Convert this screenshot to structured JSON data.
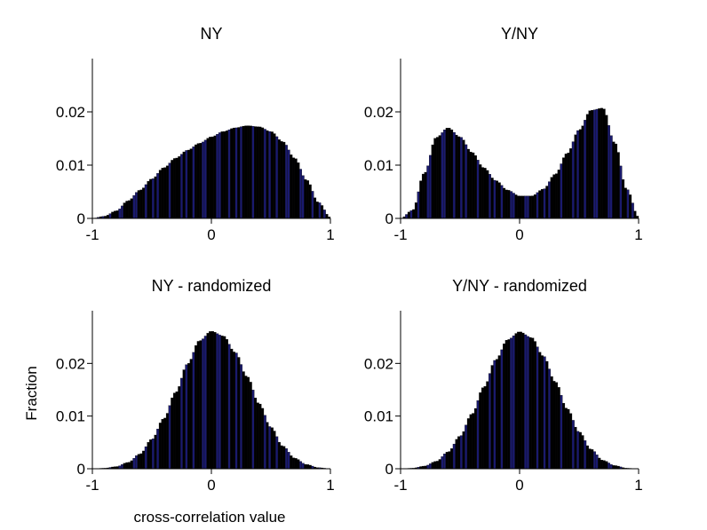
{
  "figure": {
    "ylabel": "Fraction",
    "xlabel": "cross-correlation value"
  },
  "chart_data": [
    {
      "type": "bar",
      "title": "NY",
      "xlim": [
        -1,
        1
      ],
      "ylim": [
        0,
        0.03
      ],
      "xticks": [
        "-1",
        "0",
        "1"
      ],
      "yticks": [
        "0",
        "0.01",
        "0.02"
      ],
      "x": [
        -1.0,
        -0.9,
        -0.8,
        -0.7,
        -0.6,
        -0.5,
        -0.4,
        -0.3,
        -0.2,
        -0.1,
        0.0,
        0.1,
        0.2,
        0.3,
        0.4,
        0.5,
        0.6,
        0.7,
        0.8,
        0.9,
        1.0
      ],
      "values": [
        0.0,
        0.0004,
        0.0014,
        0.0033,
        0.0053,
        0.0074,
        0.0095,
        0.0113,
        0.0128,
        0.0141,
        0.0153,
        0.0163,
        0.017,
        0.0174,
        0.0172,
        0.0163,
        0.0144,
        0.0113,
        0.0072,
        0.003,
        0.0002
      ]
    },
    {
      "type": "bar",
      "title": "Y/NY",
      "xlim": [
        -1,
        1
      ],
      "ylim": [
        0,
        0.03
      ],
      "xticks": [
        "-1",
        "0",
        "1"
      ],
      "yticks": [
        "0",
        "0.01",
        "0.02"
      ],
      "x": [
        -1.0,
        -0.9,
        -0.8,
        -0.7,
        -0.6,
        -0.5,
        -0.4,
        -0.3,
        -0.2,
        -0.1,
        0.0,
        0.1,
        0.2,
        0.3,
        0.4,
        0.5,
        0.6,
        0.7,
        0.8,
        0.9,
        1.0
      ],
      "values": [
        0.0,
        0.0015,
        0.0085,
        0.0152,
        0.017,
        0.0153,
        0.0124,
        0.0095,
        0.0071,
        0.0053,
        0.0042,
        0.0042,
        0.0055,
        0.0083,
        0.0122,
        0.0166,
        0.0203,
        0.0207,
        0.0142,
        0.0055,
        0.0003
      ]
    },
    {
      "type": "bar",
      "title": "NY - randomized",
      "xlim": [
        -1,
        1
      ],
      "ylim": [
        0,
        0.03
      ],
      "xticks": [
        "-1",
        "0",
        "1"
      ],
      "yticks": [
        "0",
        "0.01",
        "0.02"
      ],
      "x": [
        -1.0,
        -0.9,
        -0.8,
        -0.7,
        -0.6,
        -0.5,
        -0.4,
        -0.3,
        -0.2,
        -0.1,
        0.0,
        0.1,
        0.2,
        0.3,
        0.4,
        0.5,
        0.6,
        0.7,
        0.8,
        0.9,
        1.0
      ],
      "values": [
        0.0,
        0.0001,
        0.0004,
        0.0012,
        0.0028,
        0.0056,
        0.0095,
        0.0145,
        0.0199,
        0.0243,
        0.0261,
        0.0252,
        0.0221,
        0.0175,
        0.0124,
        0.0079,
        0.0043,
        0.002,
        0.0008,
        0.0002,
        0.0
      ]
    },
    {
      "type": "bar",
      "title": "Y/NY - randomized",
      "xlim": [
        -1,
        1
      ],
      "ylim": [
        0,
        0.03
      ],
      "xticks": [
        "-1",
        "0",
        "1"
      ],
      "yticks": [
        "0",
        "0.01",
        "0.02"
      ],
      "x": [
        -1.0,
        -0.9,
        -0.8,
        -0.7,
        -0.6,
        -0.5,
        -0.4,
        -0.3,
        -0.2,
        -0.1,
        0.0,
        0.1,
        0.2,
        0.3,
        0.4,
        0.5,
        0.6,
        0.7,
        0.8,
        0.9,
        1.0
      ],
      "values": [
        0.0,
        0.0001,
        0.0005,
        0.0014,
        0.0032,
        0.0062,
        0.0104,
        0.0155,
        0.0207,
        0.0245,
        0.026,
        0.0249,
        0.0214,
        0.0165,
        0.0114,
        0.007,
        0.0037,
        0.0016,
        0.0006,
        0.0001,
        0.0
      ]
    }
  ]
}
